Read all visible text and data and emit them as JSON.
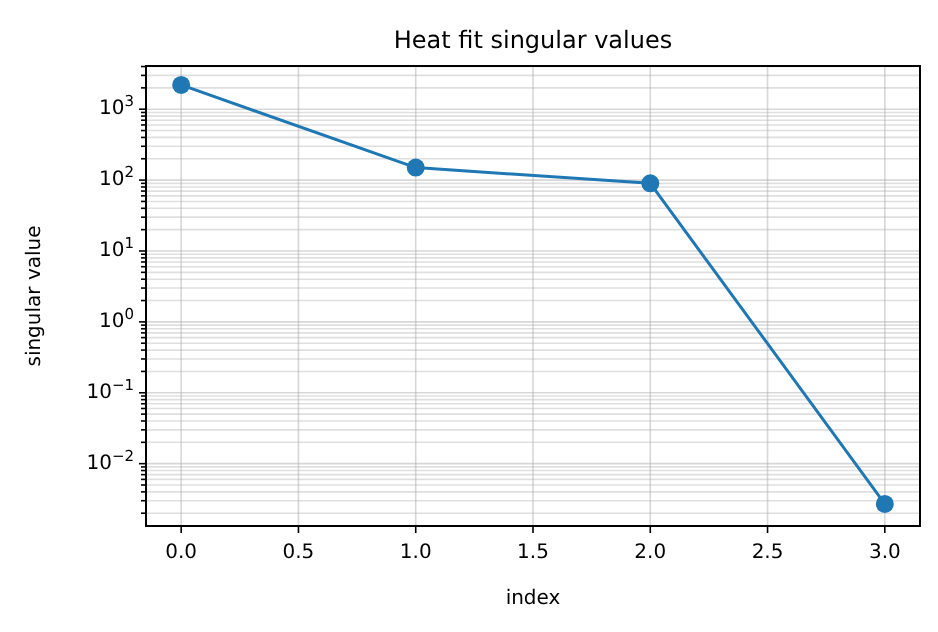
{
  "chart_data": {
    "type": "line",
    "title": "Heat fit singular values",
    "xlabel": "index",
    "ylabel": "singular value",
    "x": [
      0,
      1,
      2,
      3
    ],
    "series": [
      {
        "color": "#1f77b4",
        "values": [
          2200,
          150,
          90,
          0.0027
        ]
      }
    ],
    "marker": "circle",
    "line_style": "solid",
    "log": "y",
    "grid": true,
    "xlim": [
      -0.15,
      3.15
    ],
    "xticks": [
      {
        "value": 0,
        "label": "0.0"
      },
      {
        "value": 0.5,
        "label": "0.5"
      },
      {
        "value": 1,
        "label": "1.0"
      },
      {
        "value": 1.5,
        "label": "1.5"
      },
      {
        "value": 2,
        "label": "2.0"
      },
      {
        "value": 2.5,
        "label": "2.5"
      },
      {
        "value": 3,
        "label": "3.0"
      }
    ],
    "ylim": [
      0.00132,
      4070
    ],
    "yticks": [
      {
        "value": 0.01,
        "label": "10$^{−2}$"
      },
      {
        "value": 0.1,
        "label": "10$^{−1}$"
      },
      {
        "value": 1,
        "label": "10$^{0}$"
      },
      {
        "value": 10,
        "label": "10$^{1}$"
      },
      {
        "value": 100,
        "label": "10$^{2}$"
      },
      {
        "value": 1000,
        "label": "10$^{3}$"
      },
      {
        "value": 0.002,
        "label": null
      },
      {
        "value": 0.003,
        "label": null
      },
      {
        "value": 0.004,
        "label": null
      },
      {
        "value": 0.005,
        "label": null
      },
      {
        "value": 0.006,
        "label": null
      },
      {
        "value": 0.007,
        "label": null
      },
      {
        "value": 0.008,
        "label": null
      },
      {
        "value": 0.009,
        "label": null
      },
      {
        "value": 0.02,
        "label": null
      },
      {
        "value": 0.03,
        "label": null
      },
      {
        "value": 0.04,
        "label": null
      },
      {
        "value": 0.05,
        "label": null
      },
      {
        "value": 0.06,
        "label": null
      },
      {
        "value": 0.07,
        "label": null
      },
      {
        "value": 0.08,
        "label": null
      },
      {
        "value": 0.09,
        "label": null
      },
      {
        "value": 0.2,
        "label": null
      },
      {
        "value": 0.3,
        "label": null
      },
      {
        "value": 0.4,
        "label": null
      },
      {
        "value": 0.5,
        "label": null
      },
      {
        "value": 0.6,
        "label": null
      },
      {
        "value": 0.7,
        "label": null
      },
      {
        "value": 0.8,
        "label": null
      },
      {
        "value": 0.9,
        "label": null
      },
      {
        "value": 2,
        "label": null
      },
      {
        "value": 3,
        "label": null
      },
      {
        "value": 4,
        "label": null
      },
      {
        "value": 5,
        "label": null
      },
      {
        "value": 6,
        "label": null
      },
      {
        "value": 7,
        "label": null
      },
      {
        "value": 8,
        "label": null
      },
      {
        "value": 9,
        "label": null
      },
      {
        "value": 20,
        "label": null
      },
      {
        "value": 30,
        "label": null
      },
      {
        "value": 40,
        "label": null
      },
      {
        "value": 50,
        "label": null
      },
      {
        "value": 60,
        "label": null
      },
      {
        "value": 70,
        "label": null
      },
      {
        "value": 80,
        "label": null
      },
      {
        "value": 90,
        "label": null
      },
      {
        "value": 200,
        "label": null
      },
      {
        "value": 300,
        "label": null
      },
      {
        "value": 400,
        "label": null
      },
      {
        "value": 500,
        "label": null
      },
      {
        "value": 600,
        "label": null
      },
      {
        "value": 700,
        "label": null
      },
      {
        "value": 800,
        "label": null
      },
      {
        "value": 900,
        "label": null
      },
      {
        "value": 2000,
        "label": null
      },
      {
        "value": 3000,
        "label": null
      },
      {
        "value": 4000,
        "label": null
      }
    ]
  }
}
